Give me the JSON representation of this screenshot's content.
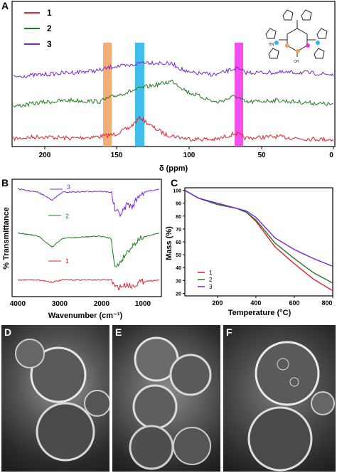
{
  "panels": {
    "A": "A",
    "B": "B",
    "C": "C",
    "D": "D",
    "E": "E",
    "F": "F"
  },
  "colors": {
    "s1": "#e0202a",
    "s2": "#1f7a1f",
    "s3": "#7a24d6",
    "orange": "#f0a060",
    "blue": "#2ab8e8",
    "magenta": "#f030e8"
  },
  "nmr": {
    "xlabel": "δ (ppm)",
    "xticks": [
      "200",
      "150",
      "100",
      "50",
      "0"
    ],
    "legend": [
      "1",
      "2",
      "3"
    ],
    "molecule_labels": {
      "nh": "HN",
      "oh": "OH"
    }
  },
  "ftir": {
    "xlabel": "Wavenumber (cm⁻¹)",
    "ylabel": "% Transmittance",
    "xticks": [
      "4000",
      "3000",
      "2000",
      "1000"
    ],
    "labels": [
      "3",
      "2",
      "1"
    ]
  },
  "tga": {
    "xlabel": "Temperature (°C)",
    "ylabel": "Mass (%)",
    "xticks": [
      "200",
      "400",
      "600",
      "800"
    ],
    "yticks": [
      "100",
      "90",
      "80",
      "70",
      "60",
      "50",
      "40",
      "30",
      "20"
    ],
    "legend": [
      "1",
      "2",
      "3"
    ]
  },
  "chart_data": [
    {
      "type": "line",
      "title": "",
      "xlabel": "δ (ppm)",
      "ylabel": "",
      "xlim": [
        220,
        0
      ],
      "series": [
        {
          "name": "1",
          "x": [
            220,
            200,
            180,
            160,
            150,
            140,
            132,
            125,
            115,
            100,
            80,
            67,
            60,
            40,
            20,
            0
          ],
          "y": [
            0.05,
            0.1,
            0.06,
            0.1,
            0.15,
            0.3,
            0.55,
            0.35,
            0.15,
            0.05,
            0.03,
            0.18,
            0.06,
            0.1,
            0.05,
            0.03
          ]
        },
        {
          "name": "2",
          "x": [
            220,
            200,
            180,
            160,
            150,
            140,
            130,
            110,
            100,
            80,
            67,
            60,
            40,
            20,
            0
          ],
          "y": [
            0.2,
            0.3,
            0.35,
            0.32,
            0.45,
            0.55,
            0.65,
            0.8,
            0.55,
            0.3,
            0.45,
            0.3,
            0.35,
            0.3,
            0.25
          ]
        },
        {
          "name": "3",
          "x": [
            220,
            200,
            180,
            160,
            150,
            140,
            130,
            110,
            100,
            80,
            67,
            60,
            40,
            20,
            0
          ],
          "y": [
            0.6,
            0.65,
            0.7,
            0.75,
            0.85,
            0.85,
            0.95,
            0.9,
            0.7,
            0.65,
            0.8,
            0.7,
            0.7,
            0.7,
            0.65
          ]
        }
      ],
      "highlight_bands_ppm": [
        154,
        132,
        67
      ]
    },
    {
      "type": "line",
      "title": "",
      "xlabel": "Wavenumber (cm⁻¹)",
      "ylabel": "% Transmittance",
      "xlim": [
        4000,
        500
      ],
      "series": [
        {
          "name": "3",
          "x": [
            4000,
            3500,
            3150,
            2900,
            2000,
            1700,
            1600,
            1450,
            1300,
            1200,
            1000,
            800,
            500
          ],
          "y": [
            0.95,
            0.92,
            0.85,
            0.92,
            0.93,
            0.92,
            0.75,
            0.72,
            0.82,
            0.78,
            0.9,
            0.93,
            0.95
          ]
        },
        {
          "name": "2",
          "x": [
            4000,
            3500,
            3150,
            2900,
            2000,
            1700,
            1600,
            1450,
            1300,
            1200,
            1000,
            800,
            500
          ],
          "y": [
            0.55,
            0.52,
            0.42,
            0.5,
            0.52,
            0.5,
            0.22,
            0.3,
            0.38,
            0.42,
            0.5,
            0.52,
            0.55
          ]
        },
        {
          "name": "1",
          "x": [
            4000,
            3500,
            3150,
            2900,
            2000,
            1700,
            1600,
            1450,
            1300,
            1200,
            1000,
            800,
            500
          ],
          "y": [
            0.12,
            0.12,
            0.1,
            0.12,
            0.12,
            0.12,
            0.05,
            0.06,
            0.08,
            0.06,
            0.1,
            0.11,
            0.12
          ]
        }
      ]
    },
    {
      "type": "line",
      "title": "",
      "xlabel": "Temperature (°C)",
      "ylabel": "Mass (%)",
      "xlim": [
        30,
        800
      ],
      "ylim": [
        20,
        100
      ],
      "series": [
        {
          "name": "1",
          "x": [
            30,
            100,
            200,
            300,
            350,
            400,
            450,
            500,
            600,
            700,
            800
          ],
          "y": [
            100,
            94,
            89,
            86,
            83,
            76,
            66,
            56,
            43,
            31,
            22
          ]
        },
        {
          "name": "2",
          "x": [
            30,
            100,
            200,
            300,
            350,
            400,
            450,
            500,
            600,
            700,
            800
          ],
          "y": [
            100,
            94,
            89,
            86,
            83,
            77,
            68,
            59,
            47,
            36,
            28
          ]
        },
        {
          "name": "3",
          "x": [
            30,
            100,
            200,
            300,
            350,
            400,
            450,
            500,
            600,
            700,
            800
          ],
          "y": [
            100,
            94,
            90,
            86,
            84,
            79,
            71,
            63,
            54,
            47,
            41
          ]
        }
      ]
    }
  ]
}
